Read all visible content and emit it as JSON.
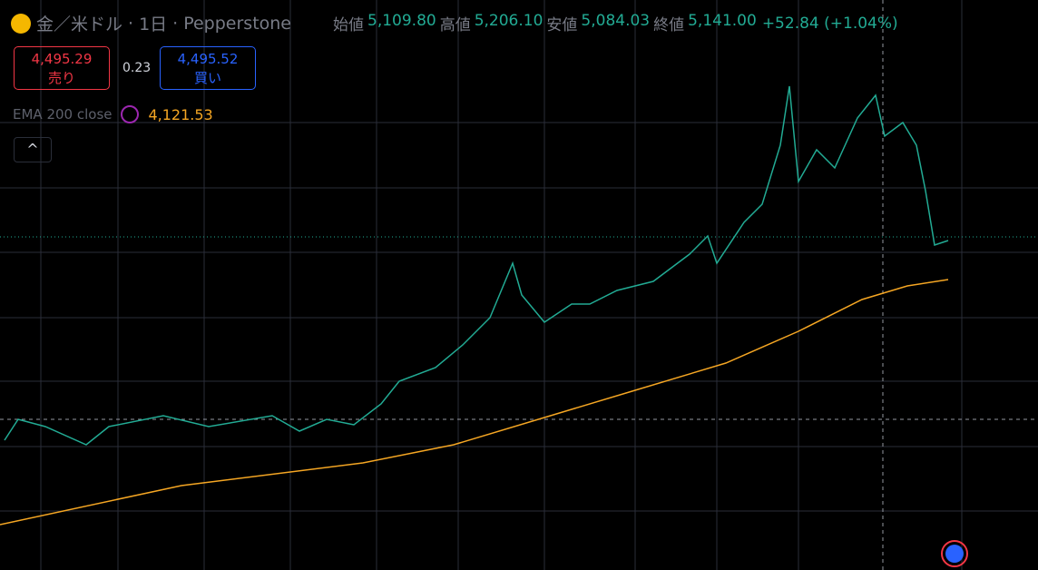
{
  "header": {
    "symbol": "金／米ドル",
    "interval": "1日",
    "source": "Pepperstone",
    "ohlc": [
      {
        "label": "始値",
        "value": "5,109.80"
      },
      {
        "label": "高値",
        "value": "5,206.10"
      },
      {
        "label": "安値",
        "value": "5,084.03"
      },
      {
        "label": "終値",
        "value": "5,141.00"
      }
    ],
    "change": "+52.84 (+1.04%)"
  },
  "trade": {
    "sell_price": "4,495.29",
    "sell_label": "売り",
    "spread": "0.23",
    "buy_price": "4,495.52",
    "buy_label": "買い"
  },
  "indicator": {
    "name": "EMA 200 close",
    "value": "4,121.53"
  }
}
